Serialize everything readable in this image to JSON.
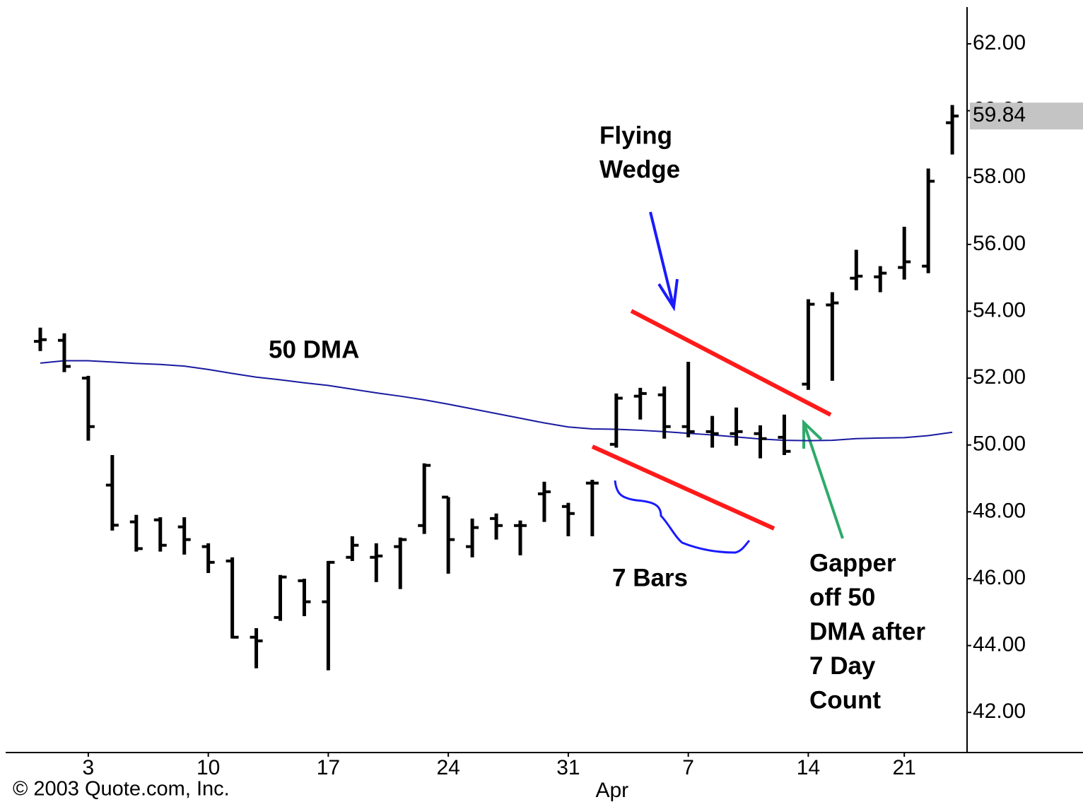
{
  "chart_data": {
    "type": "ohlc",
    "categories": [
      null,
      null,
      "3",
      null,
      null,
      null,
      null,
      "10",
      null,
      null,
      null,
      null,
      "17",
      null,
      null,
      null,
      null,
      "24",
      null,
      null,
      null,
      null,
      "31",
      null,
      null,
      null,
      null,
      "7",
      null,
      null,
      null,
      null,
      "14",
      null,
      null,
      null,
      "21",
      null,
      null
    ],
    "month_labels": [
      {
        "label": "Apr",
        "at": 24
      }
    ],
    "series": [
      {
        "color": "#000000",
        "open": [
          53.1,
          53.13,
          52.0,
          48.8,
          47.7,
          47.76,
          47.55,
          46.96,
          46.53,
          44.25,
          44.84,
          45.94,
          45.31,
          46.64,
          46.64,
          46.96,
          47.59,
          48.44,
          46.96,
          47.8,
          47.59,
          48.54,
          48.16,
          48.86,
          50.02,
          51.46,
          51.5,
          50.55,
          50.4,
          50.34,
          50.34,
          50.23,
          51.82,
          54.19,
          54.99,
          55.03,
          55.31,
          55.35,
          59.64
        ],
        "high": [
          53.51,
          53.34,
          52.07,
          49.7,
          47.91,
          47.84,
          47.84,
          47.06,
          46.64,
          44.52,
          46.11,
          46.0,
          46.53,
          47.27,
          47.06,
          47.23,
          49.45,
          48.44,
          47.8,
          47.95,
          47.74,
          48.9,
          48.27,
          48.96,
          51.54,
          51.71,
          51.75,
          52.49,
          50.87,
          51.12,
          50.59,
          50.91,
          54.36,
          54.57,
          55.84,
          55.35,
          56.53,
          58.27,
          60.17
        ],
        "low": [
          52.81,
          52.18,
          50.13,
          47.44,
          46.81,
          46.81,
          46.72,
          46.17,
          44.21,
          43.32,
          44.74,
          44.88,
          43.26,
          46.53,
          45.9,
          45.69,
          47.34,
          46.15,
          46.64,
          47.17,
          46.7,
          47.7,
          47.27,
          47.27,
          49.92,
          50.76,
          50.19,
          50.23,
          49.92,
          49.98,
          49.6,
          49.7,
          51.65,
          51.92,
          54.63,
          54.57,
          54.95,
          55.14,
          58.69
        ],
        "close": [
          53.15,
          52.35,
          50.55,
          47.6,
          46.9,
          47.0,
          47.17,
          46.49,
          44.25,
          44.14,
          46.05,
          45.31,
          46.49,
          47.0,
          46.68,
          47.17,
          49.39,
          47.17,
          47.53,
          47.59,
          47.59,
          48.6,
          47.95,
          48.86,
          51.4,
          51.54,
          50.55,
          50.4,
          50.34,
          50.4,
          50.19,
          49.81,
          54.21,
          54.25,
          55.05,
          55.14,
          55.48,
          57.89,
          59.84
        ]
      }
    ],
    "moving_average": {
      "color": "#1a1aa0",
      "values": [
        52.45,
        52.52,
        52.52,
        52.48,
        52.44,
        52.41,
        52.36,
        52.26,
        52.14,
        52.03,
        51.95,
        51.86,
        51.78,
        51.67,
        51.56,
        51.46,
        51.35,
        51.22,
        51.08,
        50.94,
        50.8,
        50.66,
        50.54,
        50.48,
        50.47,
        50.44,
        50.4,
        50.35,
        50.3,
        50.24,
        50.18,
        50.14,
        50.13,
        50.14,
        50.19,
        50.21,
        50.22,
        50.28,
        50.38
      ]
    },
    "ylim": [
      40.8,
      63.1
    ],
    "yticks": [
      {
        "value": 42,
        "label": "42.00"
      },
      {
        "value": 44,
        "label": "44.00"
      },
      {
        "value": 46,
        "label": "46.00"
      },
      {
        "value": 48,
        "label": "48.00"
      },
      {
        "value": 50,
        "label": "50.00"
      },
      {
        "value": 52,
        "label": "52.00"
      },
      {
        "value": 54,
        "label": "54.00"
      },
      {
        "value": 56,
        "label": "56.00"
      },
      {
        "value": 58,
        "label": "58.00"
      },
      {
        "value": 60,
        "label": "60.00"
      },
      {
        "value": 62,
        "label": "62.00"
      }
    ],
    "last_price": {
      "value": 59.84,
      "label": "59.84"
    },
    "annotations": [
      {
        "lines": [
          "50 DMA"
        ]
      },
      {
        "lines": [
          "Flying",
          "Wedge"
        ]
      },
      {
        "lines": [
          "7 Bars"
        ]
      },
      {
        "lines": [
          "Gapper",
          "off 50",
          "DMA after",
          "7 Day",
          "Count"
        ]
      }
    ],
    "copyright": "© 2003 Quote.com, Inc."
  }
}
